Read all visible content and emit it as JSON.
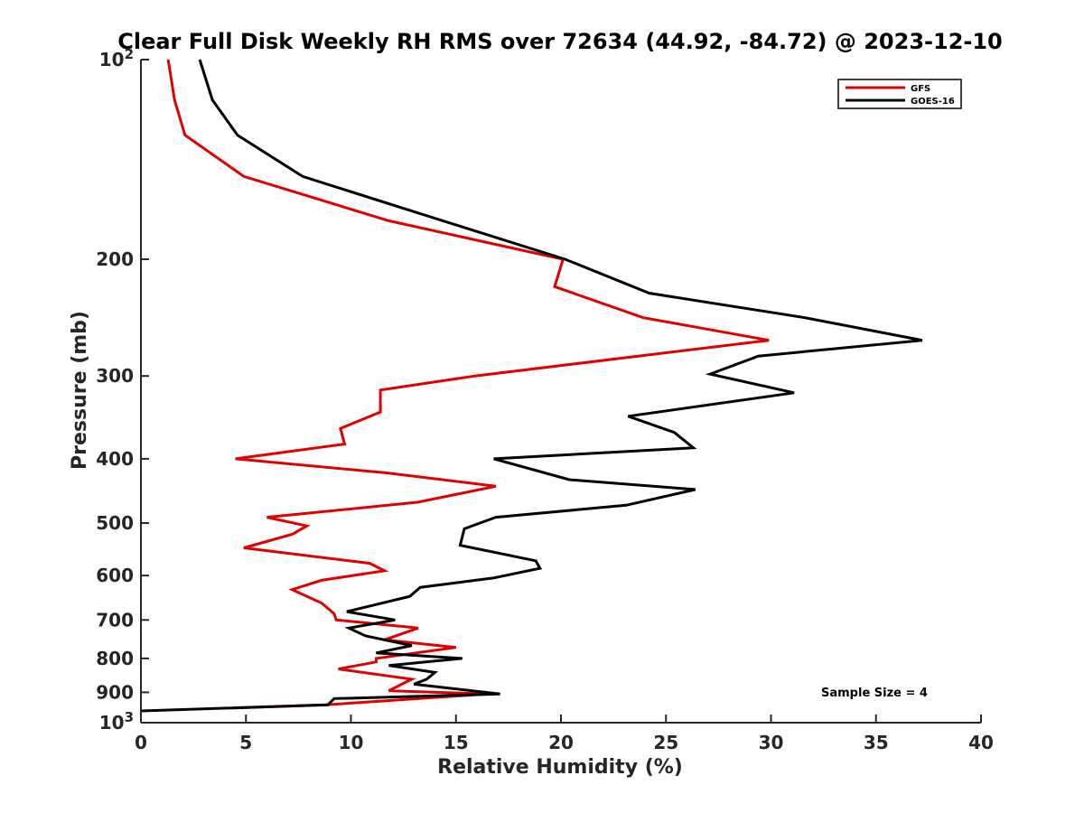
{
  "chart_data": {
    "type": "line",
    "title": "Clear Full Disk Weekly RH RMS over 72634 (44.92, -84.72) @ 2023-12-10",
    "xlabel": "Relative Humidity (%)",
    "ylabel": "Pressure (mb)",
    "xlim": [
      0,
      40
    ],
    "ylim": [
      100,
      1000
    ],
    "yscale": "log",
    "y_reversed": true,
    "grid": false,
    "legend_position": "top-right",
    "x_ticks": [
      0,
      5,
      10,
      15,
      20,
      25,
      30,
      35,
      40
    ],
    "x_tick_labels": [
      "0",
      "5",
      "10",
      "15",
      "20",
      "25",
      "30",
      "35",
      "40"
    ],
    "y_ticks": [
      100,
      200,
      300,
      400,
      500,
      600,
      700,
      800,
      900,
      1000
    ],
    "y_tick_labels": [
      {
        "base": "10",
        "exp": "2"
      },
      {
        "base": "200",
        "exp": ""
      },
      {
        "base": "300",
        "exp": ""
      },
      {
        "base": "400",
        "exp": ""
      },
      {
        "base": "500",
        "exp": ""
      },
      {
        "base": "600",
        "exp": ""
      },
      {
        "base": "700",
        "exp": ""
      },
      {
        "base": "800",
        "exp": ""
      },
      {
        "base": "900",
        "exp": ""
      },
      {
        "base": "10",
        "exp": "3"
      }
    ],
    "annotation": "Sample Size = 4",
    "series": [
      {
        "name": "GFS",
        "color": "#e00000",
        "points": [
          [
            1.3,
            100
          ],
          [
            1.6,
            115
          ],
          [
            2.1,
            130
          ],
          [
            4.9,
            150
          ],
          [
            11.8,
            175
          ],
          [
            20.1,
            200
          ],
          [
            19.7,
            220
          ],
          [
            23.9,
            245
          ],
          [
            29.9,
            265
          ],
          [
            15.9,
            300
          ],
          [
            11.4,
            315
          ],
          [
            11.4,
            340
          ],
          [
            9.5,
            360
          ],
          [
            9.7,
            380
          ],
          [
            4.5,
            400
          ],
          [
            11.7,
            420
          ],
          [
            16.9,
            440
          ],
          [
            13.2,
            465
          ],
          [
            6.0,
            490
          ],
          [
            7.9,
            505
          ],
          [
            7.2,
            520
          ],
          [
            4.9,
            545
          ],
          [
            10.9,
            575
          ],
          [
            11.6,
            590
          ],
          [
            8.6,
            610
          ],
          [
            7.2,
            630
          ],
          [
            8.6,
            660
          ],
          [
            9.2,
            685
          ],
          [
            9.3,
            700
          ],
          [
            13.2,
            720
          ],
          [
            11.6,
            750
          ],
          [
            15.0,
            770
          ],
          [
            11.2,
            800
          ],
          [
            11.2,
            810
          ],
          [
            9.4,
            830
          ],
          [
            12.9,
            860
          ],
          [
            11.8,
            895
          ],
          [
            16.5,
            905
          ],
          [
            8.8,
            940
          ],
          [
            4.4,
            950
          ]
        ]
      },
      {
        "name": "GOES-16",
        "color": "#000000",
        "points": [
          [
            2.8,
            100
          ],
          [
            3.4,
            115
          ],
          [
            4.6,
            130
          ],
          [
            7.7,
            150
          ],
          [
            13.1,
            170
          ],
          [
            20.2,
            200
          ],
          [
            24.2,
            225
          ],
          [
            31.6,
            245
          ],
          [
            37.2,
            265
          ],
          [
            29.4,
            280
          ],
          [
            27.1,
            298
          ],
          [
            31.1,
            318
          ],
          [
            23.2,
            345
          ],
          [
            25.4,
            365
          ],
          [
            26.3,
            385
          ],
          [
            16.8,
            400
          ],
          [
            20.4,
            430
          ],
          [
            26.4,
            445
          ],
          [
            23.1,
            470
          ],
          [
            16.9,
            490
          ],
          [
            15.4,
            510
          ],
          [
            15.2,
            540
          ],
          [
            18.8,
            570
          ],
          [
            19.0,
            585
          ],
          [
            16.8,
            605
          ],
          [
            13.3,
            625
          ],
          [
            12.8,
            645
          ],
          [
            9.8,
            680
          ],
          [
            12.1,
            700
          ],
          [
            9.9,
            720
          ],
          [
            10.7,
            740
          ],
          [
            12.9,
            765
          ],
          [
            11.2,
            785
          ],
          [
            15.3,
            800
          ],
          [
            11.8,
            820
          ],
          [
            14.0,
            840
          ],
          [
            13.6,
            860
          ],
          [
            13.0,
            875
          ],
          [
            17.1,
            905
          ],
          [
            9.2,
            920
          ],
          [
            8.9,
            940
          ],
          [
            0.0,
            960
          ]
        ]
      }
    ]
  }
}
